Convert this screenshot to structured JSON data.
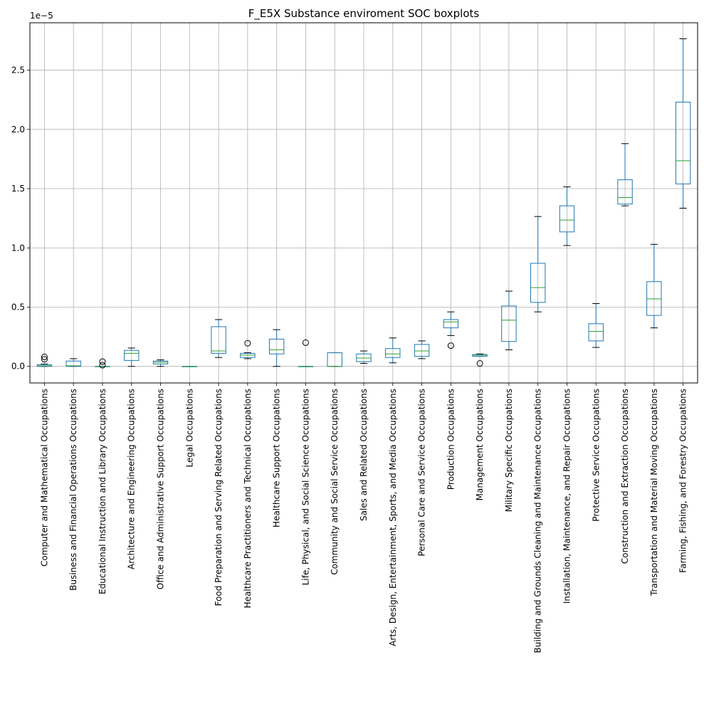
{
  "chart_data": {
    "type": "boxplot",
    "title": "F_E5X Substance enviroment SOC boxplots",
    "xlabel": "",
    "ylabel": "",
    "y_offset_label": "1e−5",
    "ylim": [
      -0.14,
      2.9
    ],
    "y_ticks": [
      0.0,
      0.5,
      1.0,
      1.5,
      2.0,
      2.5
    ],
    "y_tick_labels": [
      "0.0",
      "0.5",
      "1.0",
      "1.5",
      "2.0",
      "2.5"
    ],
    "grid": true,
    "colors": {
      "box": "#1f77b4",
      "median": "#2ca02c",
      "whisker": "#000000",
      "grid": "#b0b0b0"
    },
    "categories": [
      "Computer and Mathematical Occupations",
      "Business and Financial Operations Occupations",
      "Educational Instruction and Library Occupations",
      "Architecture and Engineering Occupations",
      "Office and Administrative Support Occupations",
      "Legal Occupations",
      "Food Preparation and Serving Related Occupations",
      "Healthcare Practitioners and Technical Occupations",
      "Healthcare Support Occupations",
      "Life, Physical, and Social Science Occupations",
      "Community and Social Service Occupations",
      "Sales and Related Occupations",
      "Arts, Design, Entertainment, Sports, and Media Occupations",
      "Personal Care and Service Occupations",
      "Production Occupations",
      "Management Occupations",
      "Military Specific Occupations",
      "Building and Grounds Cleaning and Maintenance Occupations",
      "Installation, Maintenance, and Repair Occupations",
      "Protective Service Occupations",
      "Construction and Extraction Occupations",
      "Transportation and Material Moving Occupations",
      "Farming, Fishing, and Forestry Occupations"
    ],
    "boxes": [
      {
        "whislo": 0.0,
        "q1": 0.0,
        "med": 0.005,
        "q3": 0.015,
        "whishi": 0.02,
        "fliers": [
          0.06,
          0.08
        ]
      },
      {
        "whislo": 0.0,
        "q1": 0.0,
        "med": 0.005,
        "q3": 0.045,
        "whishi": 0.065,
        "fliers": []
      },
      {
        "whislo": 0.0,
        "q1": 0.0,
        "med": 0.0,
        "q3": 0.0,
        "whishi": 0.0,
        "fliers": [
          0.01,
          0.04
        ]
      },
      {
        "whislo": 0.0,
        "q1": 0.05,
        "med": 0.11,
        "q3": 0.135,
        "whishi": 0.155,
        "fliers": []
      },
      {
        "whislo": 0.0,
        "q1": 0.02,
        "med": 0.035,
        "q3": 0.045,
        "whishi": 0.055,
        "fliers": []
      },
      {
        "whislo": 0.0,
        "q1": 0.0,
        "med": 0.0,
        "q3": 0.0,
        "whishi": 0.0,
        "fliers": []
      },
      {
        "whislo": 0.075,
        "q1": 0.11,
        "med": 0.13,
        "q3": 0.335,
        "whishi": 0.395,
        "fliers": []
      },
      {
        "whislo": 0.065,
        "q1": 0.075,
        "med": 0.095,
        "q3": 0.11,
        "whishi": 0.115,
        "fliers": [
          0.195
        ]
      },
      {
        "whislo": 0.0,
        "q1": 0.105,
        "med": 0.14,
        "q3": 0.23,
        "whishi": 0.31,
        "fliers": []
      },
      {
        "whislo": 0.0,
        "q1": 0.0,
        "med": 0.0,
        "q3": 0.0,
        "whishi": 0.0,
        "fliers": [
          0.2
        ]
      },
      {
        "whislo": 0.0,
        "q1": 0.0,
        "med": 0.0,
        "q3": 0.115,
        "whishi": 0.115,
        "fliers": []
      },
      {
        "whislo": 0.025,
        "q1": 0.04,
        "med": 0.07,
        "q3": 0.105,
        "whishi": 0.13,
        "fliers": []
      },
      {
        "whislo": 0.03,
        "q1": 0.075,
        "med": 0.105,
        "q3": 0.15,
        "whishi": 0.24,
        "fliers": []
      },
      {
        "whislo": 0.065,
        "q1": 0.085,
        "med": 0.13,
        "q3": 0.185,
        "whishi": 0.215,
        "fliers": []
      },
      {
        "whislo": 0.26,
        "q1": 0.325,
        "med": 0.375,
        "q3": 0.395,
        "whishi": 0.46,
        "fliers": [
          0.175
        ]
      },
      {
        "whislo": 0.085,
        "q1": 0.085,
        "med": 0.095,
        "q3": 0.1,
        "whishi": 0.105,
        "fliers": [
          0.025
        ]
      },
      {
        "whislo": 0.14,
        "q1": 0.21,
        "med": 0.39,
        "q3": 0.51,
        "whishi": 0.635,
        "fliers": []
      },
      {
        "whislo": 0.46,
        "q1": 0.54,
        "med": 0.665,
        "q3": 0.87,
        "whishi": 1.265,
        "fliers": []
      },
      {
        "whislo": 1.02,
        "q1": 1.135,
        "med": 1.235,
        "q3": 1.355,
        "whishi": 1.515,
        "fliers": []
      },
      {
        "whislo": 0.16,
        "q1": 0.215,
        "med": 0.295,
        "q3": 0.36,
        "whishi": 0.53,
        "fliers": []
      },
      {
        "whislo": 1.355,
        "q1": 1.37,
        "med": 1.425,
        "q3": 1.575,
        "whishi": 1.88,
        "fliers": []
      },
      {
        "whislo": 0.325,
        "q1": 0.43,
        "med": 0.57,
        "q3": 0.715,
        "whishi": 1.03,
        "fliers": []
      },
      {
        "whislo": 1.335,
        "q1": 1.54,
        "med": 1.735,
        "q3": 2.23,
        "whishi": 2.765,
        "fliers": []
      }
    ]
  }
}
